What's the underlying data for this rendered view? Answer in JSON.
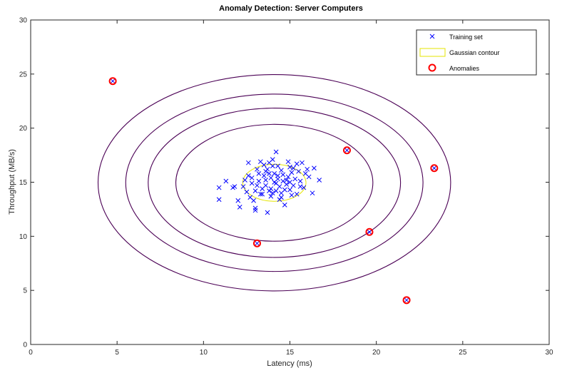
{
  "chart_data": {
    "type": "scatter",
    "title": "Anomaly Detection: Server Computers",
    "xlabel": "Latency (ms)",
    "ylabel": "Throughput (MB/s)",
    "xlim": [
      0,
      30
    ],
    "ylim": [
      0,
      30
    ],
    "xticks": [
      0,
      5,
      10,
      15,
      20,
      25,
      30
    ],
    "yticks": [
      0,
      5,
      10,
      15,
      20,
      25,
      30
    ],
    "grid": false,
    "legend_position": "top-right",
    "legend": [
      {
        "label": "Training set",
        "marker": "x",
        "color": "#0000ff"
      },
      {
        "label": "Gaussian contour",
        "marker": "line",
        "color": "#e5e500"
      },
      {
        "label": "Anomalies",
        "marker": "circle",
        "color": "#ff0000"
      }
    ],
    "gaussian": {
      "mean": [
        14.1,
        14.95
      ],
      "sigma": [
        1.83,
        1.71
      ],
      "color": "#e5e500"
    },
    "contours": {
      "color": "#4b0055",
      "rx": [
        5.7,
        7.3,
        8.6,
        10.2
      ],
      "ry": [
        5.4,
        6.9,
        8.2,
        10.0
      ]
    },
    "anomalies": [
      {
        "x": 4.75,
        "y": 24.35
      },
      {
        "x": 13.1,
        "y": 9.35
      },
      {
        "x": 18.3,
        "y": 17.95
      },
      {
        "x": 19.6,
        "y": 10.4
      },
      {
        "x": 21.75,
        "y": 4.1
      },
      {
        "x": 23.35,
        "y": 16.3
      }
    ],
    "series": [
      {
        "name": "Training set",
        "points": [
          [
            10.9,
            14.5
          ],
          [
            10.9,
            13.4
          ],
          [
            11.3,
            15.1
          ],
          [
            11.7,
            14.5
          ],
          [
            11.8,
            14.6
          ],
          [
            12.0,
            13.3
          ],
          [
            12.1,
            12.7
          ],
          [
            12.3,
            14.6
          ],
          [
            12.5,
            14.1
          ],
          [
            12.6,
            16.8
          ],
          [
            12.8,
            15.4
          ],
          [
            12.9,
            13.3
          ],
          [
            13.0,
            12.4
          ],
          [
            13.0,
            12.6
          ],
          [
            13.1,
            14.7
          ],
          [
            13.2,
            15.8
          ],
          [
            13.3,
            16.9
          ],
          [
            13.4,
            13.9
          ],
          [
            13.6,
            16.0
          ],
          [
            13.7,
            12.2
          ],
          [
            13.8,
            14.2
          ],
          [
            14.0,
            17.1
          ],
          [
            14.2,
            17.8
          ],
          [
            14.3,
            16.5
          ],
          [
            14.5,
            13.6
          ],
          [
            14.7,
            12.9
          ],
          [
            15.0,
            14.3
          ],
          [
            15.2,
            16.3
          ],
          [
            15.4,
            13.9
          ],
          [
            15.6,
            15.1
          ],
          [
            15.7,
            16.8
          ],
          [
            15.8,
            14.5
          ],
          [
            16.0,
            16.2
          ],
          [
            16.1,
            15.5
          ],
          [
            16.4,
            16.3
          ],
          [
            16.3,
            14.0
          ],
          [
            16.7,
            15.2
          ],
          [
            12.4,
            15.2
          ],
          [
            13.5,
            15.6
          ],
          [
            13.9,
            15.4
          ],
          [
            14.1,
            15.0
          ],
          [
            14.3,
            15.6
          ],
          [
            14.6,
            15.7
          ],
          [
            14.9,
            15.5
          ],
          [
            15.1,
            15.9
          ],
          [
            13.6,
            14.7
          ],
          [
            13.9,
            14.4
          ],
          [
            14.2,
            14.2
          ],
          [
            14.4,
            14.6
          ],
          [
            14.8,
            14.8
          ],
          [
            15.3,
            15.3
          ],
          [
            15.5,
            16.0
          ],
          [
            13.2,
            15.1
          ],
          [
            13.7,
            16.2
          ],
          [
            14.0,
            16.5
          ],
          [
            14.5,
            16.1
          ],
          [
            15.0,
            16.4
          ],
          [
            14.6,
            15.1
          ],
          [
            14.2,
            14.9
          ],
          [
            13.8,
            15.8
          ],
          [
            14.7,
            14.3
          ],
          [
            15.2,
            14.7
          ],
          [
            13.4,
            14.4
          ],
          [
            13.0,
            14.2
          ],
          [
            12.8,
            14.9
          ],
          [
            12.6,
            15.6
          ],
          [
            13.1,
            16.2
          ],
          [
            13.5,
            16.6
          ],
          [
            14.9,
            16.9
          ],
          [
            15.4,
            16.7
          ],
          [
            15.9,
            15.8
          ],
          [
            15.6,
            14.6
          ],
          [
            15.1,
            13.8
          ],
          [
            14.4,
            13.4
          ],
          [
            13.9,
            13.7
          ],
          [
            13.3,
            13.9
          ],
          [
            12.7,
            13.6
          ],
          [
            14.1,
            15.8
          ],
          [
            14.3,
            15.3
          ],
          [
            14.8,
            15.2
          ],
          [
            13.6,
            15.2
          ],
          [
            14.0,
            14.0
          ],
          [
            15.0,
            15.0
          ],
          [
            14.5,
            14.0
          ],
          [
            13.8,
            16.8
          ]
        ]
      }
    ]
  }
}
